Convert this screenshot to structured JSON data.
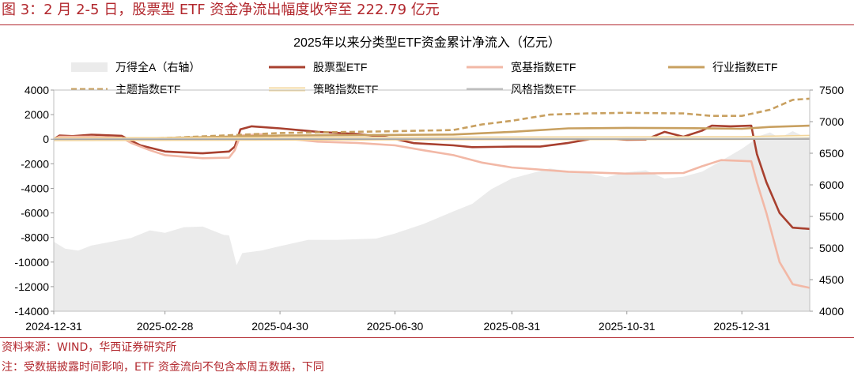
{
  "figure_title": "图 3：2 月 2-5 日，股票型 ETF 资金净流出幅度收窄至 222.79 亿元",
  "source": "资料来源：WIND，华西证券研究所",
  "note": "注：受数据披露时间影响，ETF 资金流向不包含本周五数据，下同",
  "chart_data": {
    "type": "line",
    "title": "2025年以来分类型ETF资金累计净流入（亿元）",
    "x_ticks": [
      "2024-12-31",
      "2025-02-28",
      "2025-04-30",
      "2025-06-30",
      "2025-08-31",
      "2025-10-31",
      "2025-12-31"
    ],
    "x_range": [
      "2024-12-31",
      "2026-02-05"
    ],
    "y_left": {
      "ticks": [
        4000,
        2000,
        0,
        -2000,
        -4000,
        -6000,
        -8000,
        -10000,
        -12000,
        -14000
      ],
      "range": [
        -14000,
        4000
      ]
    },
    "y_right": {
      "ticks": [
        7500,
        7000,
        6500,
        6000,
        5500,
        5000,
        4500,
        4000
      ],
      "range": [
        4000,
        7500
      ]
    },
    "legend_position": "top",
    "grid": false,
    "series": [
      {
        "name": "万得全A（右轴）",
        "axis": "right",
        "style": "area",
        "color": "#ebebeb",
        "points": [
          [
            "2024-12-31",
            5100
          ],
          [
            "2025-01-06",
            4990
          ],
          [
            "2025-01-13",
            4960
          ],
          [
            "2025-01-20",
            5040
          ],
          [
            "2025-01-27",
            5080
          ],
          [
            "2025-02-10",
            5160
          ],
          [
            "2025-02-20",
            5280
          ],
          [
            "2025-02-28",
            5240
          ],
          [
            "2025-03-10",
            5330
          ],
          [
            "2025-03-20",
            5340
          ],
          [
            "2025-03-31",
            5210
          ],
          [
            "2025-04-03",
            5200
          ],
          [
            "2025-04-07",
            4730
          ],
          [
            "2025-04-10",
            4920
          ],
          [
            "2025-04-20",
            4960
          ],
          [
            "2025-04-30",
            5030
          ],
          [
            "2025-05-15",
            5130
          ],
          [
            "2025-05-31",
            5130
          ],
          [
            "2025-06-20",
            5150
          ],
          [
            "2025-06-30",
            5230
          ],
          [
            "2025-07-15",
            5380
          ],
          [
            "2025-07-31",
            5580
          ],
          [
            "2025-08-10",
            5700
          ],
          [
            "2025-08-20",
            5930
          ],
          [
            "2025-08-31",
            6100
          ],
          [
            "2025-09-10",
            6180
          ],
          [
            "2025-09-20",
            6260
          ],
          [
            "2025-09-30",
            6220
          ],
          [
            "2025-10-10",
            6190
          ],
          [
            "2025-10-20",
            6120
          ],
          [
            "2025-10-31",
            6200
          ],
          [
            "2025-11-10",
            6230
          ],
          [
            "2025-11-20",
            6100
          ],
          [
            "2025-11-30",
            6130
          ],
          [
            "2025-12-10",
            6210
          ],
          [
            "2025-12-20",
            6380
          ],
          [
            "2025-12-31",
            6570
          ],
          [
            "2026-01-10",
            6780
          ],
          [
            "2026-01-15",
            6830
          ],
          [
            "2026-01-20",
            6740
          ],
          [
            "2026-01-27",
            6850
          ],
          [
            "2026-02-05",
            6720
          ]
        ]
      },
      {
        "name": "股票型ETF",
        "axis": "left",
        "style": "solid",
        "color": "#a8402f",
        "points": [
          [
            "2024-12-31",
            0
          ],
          [
            "2025-01-03",
            300
          ],
          [
            "2025-01-10",
            250
          ],
          [
            "2025-01-20",
            370
          ],
          [
            "2025-02-05",
            280
          ],
          [
            "2025-02-10",
            -120
          ],
          [
            "2025-02-15",
            -500
          ],
          [
            "2025-02-28",
            -1000
          ],
          [
            "2025-03-20",
            -1150
          ],
          [
            "2025-04-03",
            -1000
          ],
          [
            "2025-04-06",
            -600
          ],
          [
            "2025-04-09",
            800
          ],
          [
            "2025-04-15",
            1050
          ],
          [
            "2025-04-30",
            880
          ],
          [
            "2025-05-20",
            600
          ],
          [
            "2025-06-10",
            420
          ],
          [
            "2025-06-25",
            180
          ],
          [
            "2025-07-10",
            -320
          ],
          [
            "2025-07-31",
            -500
          ],
          [
            "2025-08-10",
            -650
          ],
          [
            "2025-08-31",
            -600
          ],
          [
            "2025-09-15",
            -600
          ],
          [
            "2025-09-30",
            -300
          ],
          [
            "2025-10-15",
            100
          ],
          [
            "2025-10-31",
            -50
          ],
          [
            "2025-11-10",
            -30
          ],
          [
            "2025-11-20",
            600
          ],
          [
            "2025-11-30",
            200
          ],
          [
            "2025-12-10",
            700
          ],
          [
            "2025-12-15",
            1100
          ],
          [
            "2025-12-25",
            1050
          ],
          [
            "2026-01-05",
            1100
          ],
          [
            "2026-01-08",
            -1200
          ],
          [
            "2026-01-13",
            -3500
          ],
          [
            "2026-01-20",
            -6000
          ],
          [
            "2026-01-27",
            -7200
          ],
          [
            "2026-02-05",
            -7300
          ]
        ]
      },
      {
        "name": "宽基指数ETF",
        "axis": "left",
        "style": "solid",
        "color": "#f2b8a6",
        "points": [
          [
            "2024-12-31",
            0
          ],
          [
            "2025-01-03",
            200
          ],
          [
            "2025-01-20",
            200
          ],
          [
            "2025-02-05",
            120
          ],
          [
            "2025-02-10",
            -300
          ],
          [
            "2025-02-20",
            -900
          ],
          [
            "2025-02-28",
            -1300
          ],
          [
            "2025-03-20",
            -1550
          ],
          [
            "2025-04-03",
            -1500
          ],
          [
            "2025-04-06",
            -900
          ],
          [
            "2025-04-09",
            300
          ],
          [
            "2025-04-20",
            400
          ],
          [
            "2025-04-30",
            100
          ],
          [
            "2025-05-20",
            -200
          ],
          [
            "2025-06-10",
            -300
          ],
          [
            "2025-06-30",
            -500
          ],
          [
            "2025-07-15",
            -900
          ],
          [
            "2025-07-31",
            -1300
          ],
          [
            "2025-08-15",
            -1900
          ],
          [
            "2025-08-31",
            -2300
          ],
          [
            "2025-09-30",
            -2650
          ],
          [
            "2025-10-31",
            -2800
          ],
          [
            "2025-11-30",
            -2750
          ],
          [
            "2025-12-10",
            -2200
          ],
          [
            "2025-12-20",
            -1700
          ],
          [
            "2026-01-05",
            -1800
          ],
          [
            "2026-01-08",
            -3500
          ],
          [
            "2026-01-13",
            -6000
          ],
          [
            "2026-01-20",
            -10000
          ],
          [
            "2026-01-27",
            -11800
          ],
          [
            "2026-02-05",
            -12100
          ]
        ]
      },
      {
        "name": "行业指数ETF",
        "axis": "left",
        "style": "solid",
        "color": "#c8a060",
        "points": [
          [
            "2024-12-31",
            0
          ],
          [
            "2025-02-28",
            100
          ],
          [
            "2025-04-30",
            300
          ],
          [
            "2025-06-30",
            350
          ],
          [
            "2025-07-31",
            380
          ],
          [
            "2025-08-31",
            600
          ],
          [
            "2025-09-30",
            880
          ],
          [
            "2025-10-31",
            920
          ],
          [
            "2025-11-30",
            900
          ],
          [
            "2025-12-31",
            850
          ],
          [
            "2026-01-15",
            1000
          ],
          [
            "2026-02-05",
            1100
          ]
        ]
      },
      {
        "name": "主题指数ETF",
        "axis": "left",
        "style": "dashed",
        "color": "#c8a060",
        "points": [
          [
            "2024-12-31",
            0
          ],
          [
            "2025-02-28",
            100
          ],
          [
            "2025-04-30",
            500
          ],
          [
            "2025-06-30",
            650
          ],
          [
            "2025-07-31",
            750
          ],
          [
            "2025-08-15",
            1200
          ],
          [
            "2025-08-31",
            1500
          ],
          [
            "2025-09-20",
            2000
          ],
          [
            "2025-10-10",
            2100
          ],
          [
            "2025-10-31",
            2150
          ],
          [
            "2025-11-30",
            2100
          ],
          [
            "2025-12-15",
            1900
          ],
          [
            "2025-12-31",
            1900
          ],
          [
            "2026-01-15",
            2400
          ],
          [
            "2026-01-27",
            3200
          ],
          [
            "2026-02-05",
            3300
          ]
        ]
      },
      {
        "name": "策略指数ETF",
        "axis": "left",
        "style": "double",
        "color": "#f2d49a",
        "points": [
          [
            "2024-12-31",
            0
          ],
          [
            "2025-06-30",
            50
          ],
          [
            "2025-12-31",
            100
          ],
          [
            "2026-02-05",
            200
          ]
        ]
      },
      {
        "name": "风格指数ETF",
        "axis": "left",
        "style": "solid",
        "color": "#bdbdbd",
        "points": [
          [
            "2024-12-31",
            0
          ],
          [
            "2025-06-30",
            20
          ],
          [
            "2025-12-31",
            40
          ],
          [
            "2026-02-05",
            60
          ]
        ]
      }
    ]
  }
}
